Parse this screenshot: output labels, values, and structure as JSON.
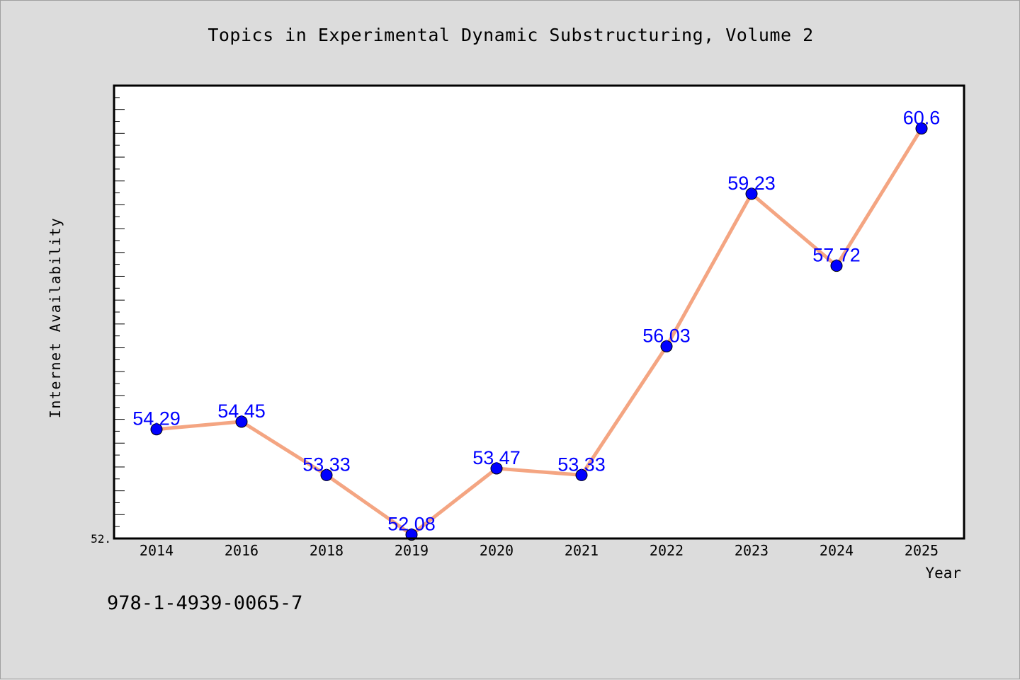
{
  "title": "Topics in Experimental Dynamic Substructuring, Volume 2",
  "footer": {
    "isbn": "978-1-4939-0065-7"
  },
  "colors": {
    "background": "#dcdcdc",
    "plot_background": "#ffffff",
    "line": "#f4a582",
    "marker": "#0000ff",
    "data_label": "#0000ff"
  },
  "chart_data": {
    "type": "line",
    "title": "Topics in Experimental Dynamic Substructuring, Volume 2",
    "xlabel": "Year",
    "ylabel": "Internet Availability",
    "categories": [
      "2014",
      "2016",
      "2018",
      "2019",
      "2020",
      "2021",
      "2022",
      "2023",
      "2024",
      "2025"
    ],
    "series": [
      {
        "values": [
          54.29,
          54.45,
          53.33,
          52.08,
          53.47,
          53.33,
          56.03,
          59.23,
          57.72,
          60.6
        ],
        "data_labels": [
          "54.29",
          "54.45",
          "53.33",
          "52.08",
          "53.47",
          "53.33",
          "56.03",
          "59.23",
          "57.72",
          "60.6"
        ]
      }
    ],
    "ylim": [
      52.0,
      61.5
    ],
    "y_tick_labels": [
      "52."
    ],
    "grid": false,
    "legend": "none",
    "marker": "circle"
  }
}
